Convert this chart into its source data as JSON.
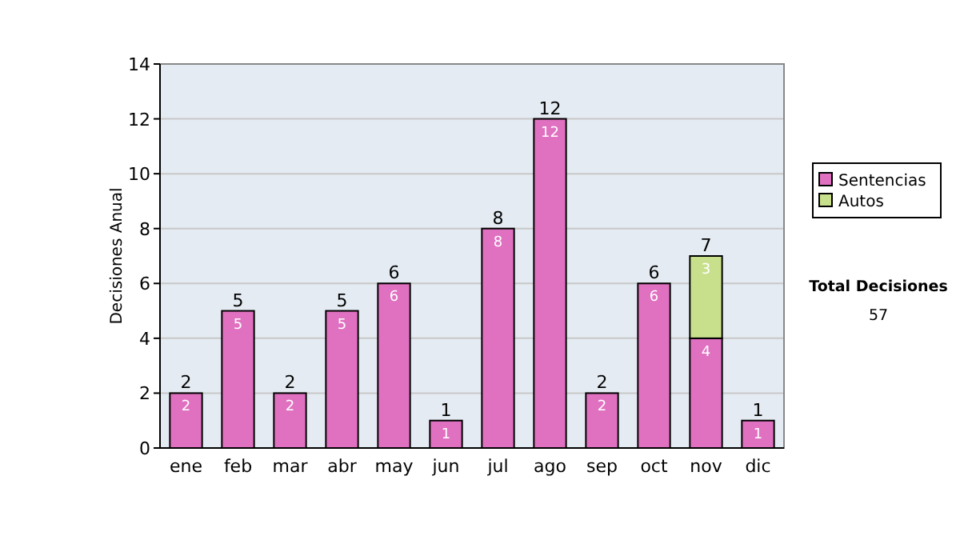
{
  "chart_data": {
    "type": "bar",
    "stacked": true,
    "ylabel": "Decisiones Anual",
    "categories": [
      "ene",
      "feb",
      "mar",
      "abr",
      "may",
      "jun",
      "jul",
      "ago",
      "sep",
      "oct",
      "nov",
      "dic"
    ],
    "series": [
      {
        "name": "Sentencias",
        "color": "#e070c0",
        "values": [
          2,
          5,
          2,
          5,
          6,
          1,
          8,
          12,
          2,
          6,
          4,
          1
        ],
        "value_labels": [
          "2",
          "5",
          "2",
          "5",
          "6",
          "1",
          "8",
          "12",
          "2",
          "6",
          "4",
          "1"
        ]
      },
      {
        "name": "Autos",
        "color": "#c8e08c",
        "values": [
          0,
          0,
          0,
          0,
          0,
          0,
          0,
          0,
          0,
          0,
          3,
          0
        ],
        "value_labels": [
          null,
          null,
          null,
          null,
          null,
          null,
          null,
          null,
          null,
          null,
          "3",
          null
        ]
      }
    ],
    "totals": [
      "2",
      "5",
      "2",
      "5",
      "6",
      "1",
      "8",
      "12",
      "2",
      "6",
      "7",
      "1"
    ],
    "ylim": [
      0,
      14
    ],
    "yticks": [
      0,
      2,
      4,
      6,
      8,
      10,
      12,
      14
    ],
    "grid": "y",
    "legend": "right",
    "annotations": [
      "Total Decisiones",
      "57"
    ]
  }
}
